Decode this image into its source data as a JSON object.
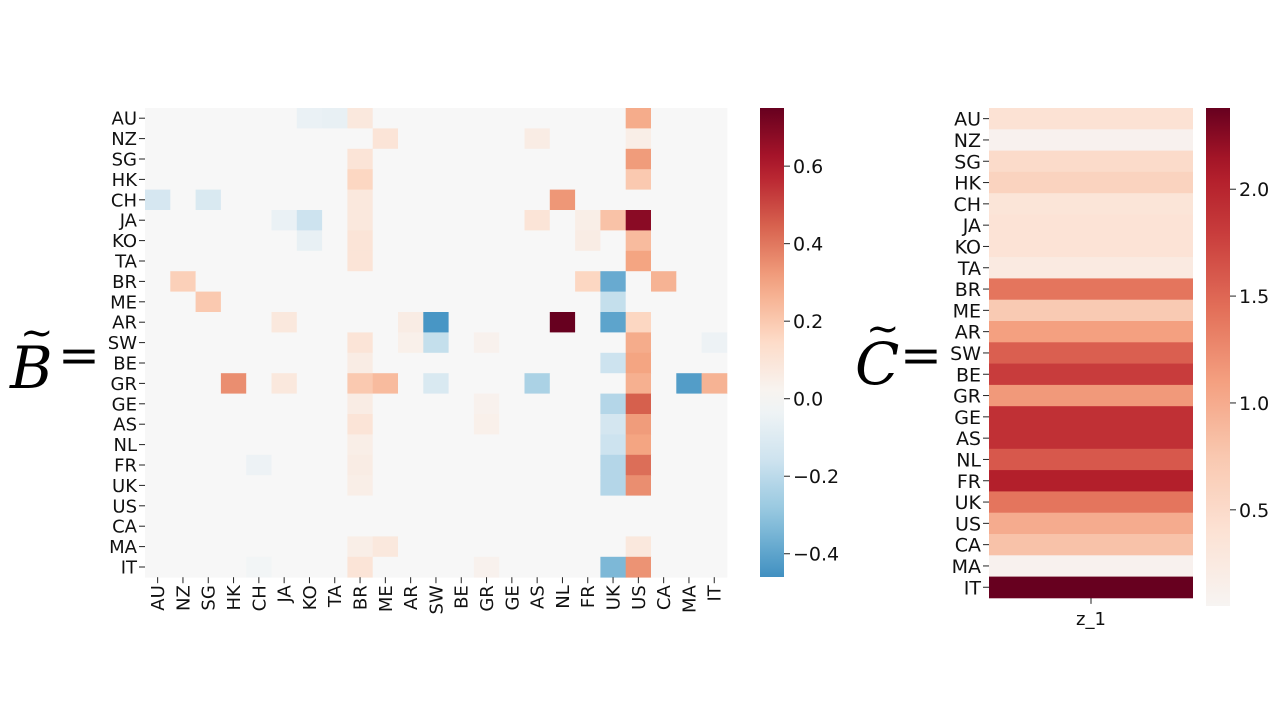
{
  "left_label": {
    "symbol": "B",
    "tilde": "~",
    "equals": "="
  },
  "right_label": {
    "symbol": "C",
    "tilde": "~",
    "equals": "="
  },
  "chart_data": [
    {
      "type": "heatmap",
      "rows": [
        "AU",
        "NZ",
        "SG",
        "HK",
        "CH",
        "JA",
        "KO",
        "TA",
        "BR",
        "ME",
        "AR",
        "SW",
        "BE",
        "GR",
        "GE",
        "AS",
        "NL",
        "FR",
        "UK",
        "US",
        "CA",
        "MA",
        "IT"
      ],
      "columns": [
        "AU",
        "NZ",
        "SG",
        "HK",
        "CH",
        "JA",
        "KO",
        "TA",
        "BR",
        "ME",
        "AR",
        "SW",
        "BE",
        "GR",
        "GE",
        "AS",
        "NL",
        "FR",
        "UK",
        "US",
        "CA",
        "MA",
        "IT"
      ],
      "colormap": "RdBu_r",
      "vmin": -0.46,
      "vmax": 0.75,
      "colorbar_ticks": [
        0.6,
        0.4,
        0.2,
        0.0,
        -0.2,
        -0.4
      ],
      "colorbar_tick_labels": [
        "0.6",
        "0.4",
        "0.2",
        "0.0",
        "−0.2",
        "−0.4"
      ],
      "values": [
        [
          0,
          0,
          0,
          0,
          0,
          0,
          -0.05,
          -0.06,
          0.08,
          0,
          0,
          0,
          0,
          0,
          0,
          0,
          0,
          0,
          0,
          0.28,
          0,
          0,
          0
        ],
        [
          0,
          0,
          0,
          0,
          0,
          0,
          0,
          0,
          0,
          0.1,
          0,
          0,
          0,
          0,
          0,
          0.06,
          0,
          0,
          0,
          0.05,
          0,
          0,
          0
        ],
        [
          0,
          0,
          0,
          0,
          0,
          0,
          0,
          0,
          0.1,
          0,
          0,
          0,
          0,
          0,
          0,
          0,
          0,
          0,
          0,
          0.32,
          0,
          0,
          0
        ],
        [
          0,
          0,
          0,
          0,
          0,
          0,
          0,
          0,
          0.16,
          0,
          0,
          0,
          0,
          0,
          0,
          0,
          0,
          0,
          0,
          0.2,
          0,
          0,
          0
        ],
        [
          -0.13,
          0,
          -0.12,
          0,
          0,
          0,
          0,
          0,
          0.08,
          0,
          0,
          0,
          0,
          0,
          0,
          0,
          0.33,
          0,
          0,
          0,
          0,
          0,
          0
        ],
        [
          0,
          0,
          0,
          0,
          0,
          -0.05,
          -0.16,
          0,
          0.08,
          0,
          0,
          0,
          0,
          0,
          0,
          0.1,
          0,
          0.05,
          0.22,
          0.68,
          0,
          0,
          0
        ],
        [
          0,
          0,
          0,
          0,
          0,
          0,
          -0.06,
          0,
          0.1,
          0,
          0,
          0,
          0,
          0,
          0,
          0,
          0,
          0.06,
          0,
          0.24,
          0,
          0,
          0
        ],
        [
          0,
          0,
          0,
          0,
          0,
          0,
          0,
          0,
          0.1,
          0,
          0,
          0,
          0,
          0,
          0,
          0,
          0,
          0,
          0,
          0.3,
          0,
          0,
          0
        ],
        [
          0,
          0.18,
          0,
          0,
          0,
          0,
          0,
          0,
          0,
          0,
          0,
          0,
          0,
          0,
          0,
          0,
          0,
          0.16,
          -0.38,
          0,
          0.26,
          0,
          0
        ],
        [
          0,
          0,
          0.2,
          0,
          0,
          0,
          0,
          0,
          0,
          0,
          0,
          0,
          0,
          0,
          0,
          0,
          0,
          0,
          -0.18,
          0,
          0,
          0,
          0
        ],
        [
          0,
          0,
          0,
          0,
          0,
          0.08,
          0,
          0,
          0,
          0,
          0.06,
          -0.44,
          0,
          0,
          0,
          0,
          0.75,
          0,
          -0.4,
          0.16,
          0,
          0,
          0
        ],
        [
          0,
          0,
          0,
          0,
          0,
          0,
          0,
          0,
          0.1,
          0,
          0.04,
          -0.18,
          0,
          0.03,
          0,
          0,
          0,
          0,
          0,
          0.28,
          0,
          0,
          -0.04
        ],
        [
          0,
          0,
          0,
          0,
          0,
          0,
          0,
          0,
          0.06,
          0,
          0,
          0,
          0,
          0,
          0,
          0,
          0,
          0,
          -0.16,
          0.3,
          0,
          0,
          0
        ],
        [
          0,
          0,
          0,
          0.35,
          0,
          0.08,
          0,
          0,
          0.2,
          0.24,
          0,
          -0.12,
          0,
          0,
          0,
          -0.24,
          0,
          0,
          0,
          0.27,
          0,
          -0.42,
          0.26
        ],
        [
          0,
          0,
          0,
          0,
          0,
          0,
          0,
          0,
          0.06,
          0,
          0,
          0,
          0,
          0.03,
          0,
          0,
          0,
          0,
          -0.22,
          0.45,
          0,
          0,
          0
        ],
        [
          0,
          0,
          0,
          0,
          0,
          0,
          0,
          0,
          0.1,
          0,
          0,
          0,
          0,
          0.04,
          0,
          0,
          0,
          0,
          -0.14,
          0.32,
          0,
          0,
          0
        ],
        [
          0,
          0,
          0,
          0,
          0,
          0,
          0,
          0,
          0.05,
          0,
          0,
          0,
          0,
          0,
          0,
          0,
          0,
          0,
          -0.16,
          0.3,
          0,
          0,
          0
        ],
        [
          0,
          0,
          0,
          0,
          -0.04,
          0,
          0,
          0,
          0.06,
          0,
          0,
          0,
          0,
          0,
          0,
          0,
          0,
          0,
          -0.22,
          0.42,
          0,
          0,
          0
        ],
        [
          0,
          0,
          0,
          0,
          0,
          0,
          0,
          0,
          0.05,
          0,
          0,
          0,
          0,
          0,
          0,
          0,
          0,
          0,
          -0.22,
          0.35,
          0,
          0,
          0
        ],
        [
          0,
          0,
          0,
          0,
          0,
          0,
          0,
          0,
          0,
          0,
          0,
          0,
          0,
          0,
          0,
          0,
          0,
          0,
          0,
          0,
          0,
          0,
          0
        ],
        [
          0,
          0,
          0,
          0,
          0,
          0,
          0,
          0,
          0,
          0,
          0,
          0,
          0,
          0,
          0,
          0,
          0,
          0,
          0,
          0,
          0,
          0,
          0
        ],
        [
          0,
          0,
          0,
          0,
          0,
          0,
          0,
          0,
          0.05,
          0.08,
          0,
          0,
          0,
          0,
          0,
          0,
          0,
          0,
          0,
          0.08,
          0,
          0,
          0
        ],
        [
          0,
          0,
          0,
          0,
          -0.02,
          0,
          0,
          0,
          0.1,
          0,
          0,
          0,
          0,
          0.03,
          0,
          0,
          0,
          0,
          -0.34,
          0.34,
          0,
          0,
          0
        ]
      ]
    },
    {
      "type": "heatmap",
      "rows": [
        "AU",
        "NZ",
        "SG",
        "HK",
        "CH",
        "JA",
        "KO",
        "TA",
        "BR",
        "ME",
        "AR",
        "SW",
        "BE",
        "GR",
        "GE",
        "AS",
        "NL",
        "FR",
        "UK",
        "US",
        "CA",
        "MA",
        "IT"
      ],
      "columns": [
        "z_1"
      ],
      "colormap": "Reds",
      "vmin": 0.05,
      "vmax": 2.38,
      "colorbar_ticks": [
        2.0,
        1.5,
        1.0,
        0.5
      ],
      "colorbar_tick_labels": [
        "2.0",
        "1.5",
        "1.0",
        "0.5"
      ],
      "values": [
        0.4,
        0.1,
        0.5,
        0.6,
        0.35,
        0.38,
        0.38,
        0.25,
        1.4,
        0.72,
        1.1,
        1.55,
        1.8,
        1.15,
        1.9,
        1.9,
        1.6,
        2.05,
        1.4,
        1.0,
        0.8,
        0.1,
        2.38
      ]
    }
  ]
}
